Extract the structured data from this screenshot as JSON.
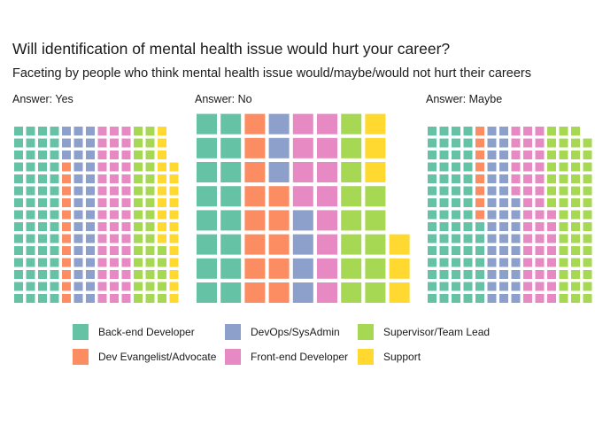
{
  "title": "Will identification of mental health issue would hurt your career?",
  "subtitle": "Faceting by people who think mental health issue would/maybe/would not hurt their careers",
  "chart_data": {
    "type": "waffle",
    "categories": [
      "Back-end Developer",
      "Dev Evangelist/Advocate",
      "DevOps/SysAdmin",
      "Front-end Developer",
      "Supervisor/Team Lead",
      "Support"
    ],
    "colors": [
      "#66c2a5",
      "#fc8d62",
      "#8da0cb",
      "#e78ac3",
      "#a6d854",
      "#ffd92f"
    ],
    "facets": [
      {
        "label": "Answer: Yes",
        "rows": 15,
        "columns": [
          [
            15,
            0,
            0,
            0,
            0,
            0
          ],
          [
            15,
            0,
            0,
            0,
            0,
            0
          ],
          [
            15,
            0,
            0,
            0,
            0,
            0
          ],
          [
            15,
            0,
            0,
            0,
            0,
            0
          ],
          [
            0,
            12,
            3,
            0,
            0,
            0
          ],
          [
            0,
            0,
            15,
            0,
            0,
            0
          ],
          [
            0,
            0,
            15,
            0,
            0,
            0
          ],
          [
            0,
            0,
            0,
            15,
            0,
            0
          ],
          [
            0,
            0,
            0,
            15,
            0,
            0
          ],
          [
            0,
            0,
            0,
            15,
            0,
            0
          ],
          [
            0,
            0,
            0,
            0,
            15,
            0
          ],
          [
            0,
            0,
            0,
            0,
            15,
            0
          ],
          [
            0,
            0,
            0,
            0,
            5,
            10
          ],
          [
            0,
            0,
            0,
            0,
            0,
            12
          ]
        ]
      },
      {
        "label": "Answer: No",
        "rows": 8,
        "columns": [
          [
            8,
            0,
            0,
            0,
            0,
            0
          ],
          [
            8,
            0,
            0,
            0,
            0,
            0
          ],
          [
            0,
            8,
            0,
            0,
            0,
            0
          ],
          [
            0,
            5,
            3,
            0,
            0,
            0
          ],
          [
            0,
            0,
            4,
            4,
            0,
            0
          ],
          [
            0,
            0,
            0,
            8,
            0,
            0
          ],
          [
            0,
            0,
            0,
            0,
            8,
            0
          ],
          [
            0,
            0,
            0,
            0,
            5,
            3
          ],
          [
            0,
            0,
            0,
            0,
            0,
            3
          ]
        ]
      },
      {
        "label": "Answer: Maybe",
        "rows": 15,
        "columns": [
          [
            15,
            0,
            0,
            0,
            0,
            0
          ],
          [
            15,
            0,
            0,
            0,
            0,
            0
          ],
          [
            15,
            0,
            0,
            0,
            0,
            0
          ],
          [
            15,
            0,
            0,
            0,
            0,
            0
          ],
          [
            7,
            8,
            0,
            0,
            0,
            0
          ],
          [
            0,
            0,
            15,
            0,
            0,
            0
          ],
          [
            0,
            0,
            15,
            0,
            0,
            0
          ],
          [
            0,
            0,
            9,
            6,
            0,
            0
          ],
          [
            0,
            0,
            0,
            15,
            0,
            0
          ],
          [
            0,
            0,
            0,
            15,
            0,
            0
          ],
          [
            0,
            0,
            0,
            8,
            7,
            0
          ],
          [
            0,
            0,
            0,
            0,
            15,
            0
          ],
          [
            0,
            0,
            0,
            0,
            15,
            0
          ],
          [
            0,
            0,
            0,
            0,
            14,
            0
          ]
        ]
      }
    ],
    "legend": {
      "position": "bottom",
      "ncol": 3
    },
    "grid": false
  }
}
